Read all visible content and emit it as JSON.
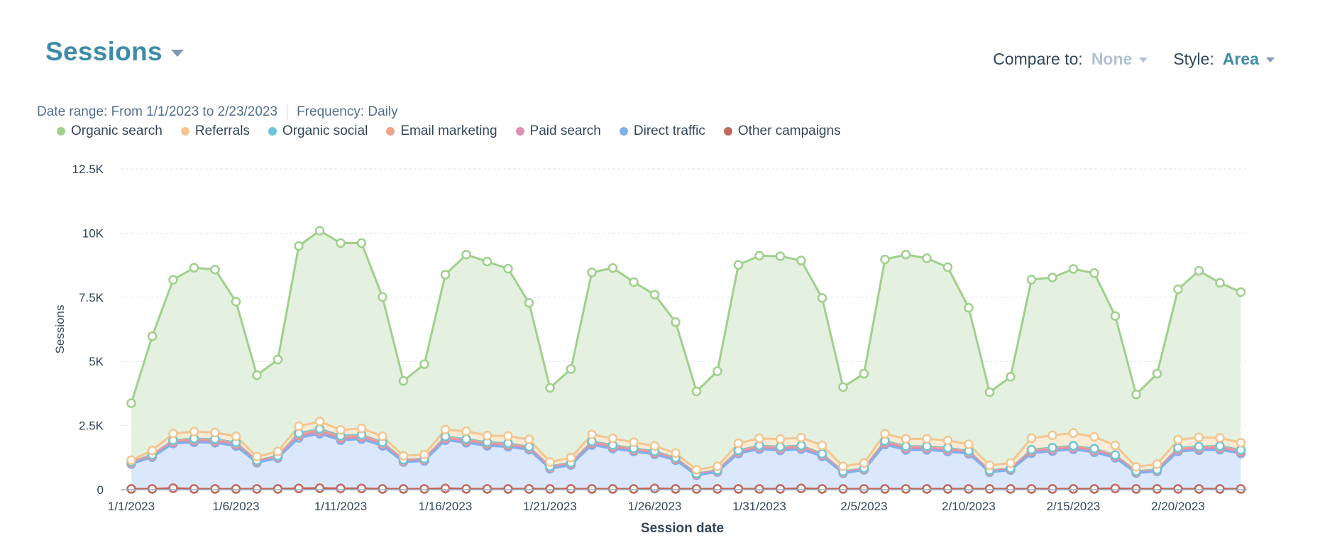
{
  "header": {
    "title": "Sessions"
  },
  "controls": {
    "compare_label": "Compare to:",
    "compare_value": "None",
    "style_label": "Style:",
    "style_value": "Area"
  },
  "meta": {
    "date_range": "Date range: From 1/1/2023 to 2/23/2023",
    "frequency": "Frequency: Daily"
  },
  "chart_data": {
    "type": "area",
    "stacked": true,
    "xlabel": "Session date",
    "ylabel": "Sessions",
    "ylim": [
      0,
      12500
    ],
    "yticks": [
      0,
      2500,
      5000,
      7500,
      10000,
      12500
    ],
    "ytick_labels": [
      "0",
      "2.5K",
      "5K",
      "7.5K",
      "10K",
      "12.5K"
    ],
    "x_tick_labels": [
      "1/1/2023",
      "1/6/2023",
      "1/11/2023",
      "1/16/2023",
      "1/21/2023",
      "1/26/2023",
      "1/31/2023",
      "2/5/2023",
      "2/10/2023",
      "2/15/2023",
      "2/20/2023"
    ],
    "x_tick_every": 5,
    "grid": true,
    "legend_position": "top-left",
    "categories": [
      "1/1/2023",
      "1/2/2023",
      "1/3/2023",
      "1/4/2023",
      "1/5/2023",
      "1/6/2023",
      "1/7/2023",
      "1/8/2023",
      "1/9/2023",
      "1/10/2023",
      "1/11/2023",
      "1/12/2023",
      "1/13/2023",
      "1/14/2023",
      "1/15/2023",
      "1/16/2023",
      "1/17/2023",
      "1/18/2023",
      "1/19/2023",
      "1/20/2023",
      "1/21/2023",
      "1/22/2023",
      "1/23/2023",
      "1/24/2023",
      "1/25/2023",
      "1/26/2023",
      "1/27/2023",
      "1/28/2023",
      "1/29/2023",
      "1/30/2023",
      "1/31/2023",
      "2/1/2023",
      "2/2/2023",
      "2/3/2023",
      "2/4/2023",
      "2/5/2023",
      "2/6/2023",
      "2/7/2023",
      "2/8/2023",
      "2/9/2023",
      "2/10/2023",
      "2/11/2023",
      "2/12/2023",
      "2/13/2023",
      "2/14/2023",
      "2/15/2023",
      "2/16/2023",
      "2/17/2023",
      "2/18/2023",
      "2/19/2023",
      "2/20/2023",
      "2/21/2023",
      "2/22/2023",
      "2/23/2023"
    ],
    "series": [
      {
        "name": "Other campaigns",
        "color": "#c0685a",
        "line": "#c0685a",
        "values": [
          30,
          30,
          60,
          30,
          30,
          30,
          30,
          30,
          50,
          60,
          50,
          50,
          30,
          30,
          30,
          50,
          30,
          30,
          30,
          30,
          30,
          30,
          30,
          30,
          30,
          50,
          30,
          30,
          30,
          30,
          30,
          30,
          50,
          30,
          30,
          30,
          30,
          30,
          30,
          30,
          30,
          30,
          30,
          30,
          30,
          30,
          30,
          50,
          30,
          30,
          30,
          30,
          30,
          30
        ]
      },
      {
        "name": "Direct traffic",
        "color": "#dbe8fb",
        "line": "#7fb0ec",
        "values": [
          970,
          1240,
          1740,
          1820,
          1800,
          1670,
          1020,
          1200,
          1970,
          2120,
          1880,
          1920,
          1680,
          1050,
          1090,
          1880,
          1800,
          1680,
          1640,
          1530,
          790,
          930,
          1710,
          1570,
          1460,
          1330,
          1120,
          530,
          660,
          1380,
          1550,
          1500,
          1530,
          1270,
          610,
          740,
          1730,
          1520,
          1520,
          1460,
          1370,
          650,
          730,
          1390,
          1470,
          1540,
          1430,
          1190,
          620,
          680,
          1460,
          1510,
          1530,
          1380
        ]
      },
      {
        "name": "Paid search",
        "color": "#ead7e6",
        "line": "#dd8fb0",
        "values": [
          40,
          40,
          50,
          60,
          60,
          60,
          40,
          40,
          80,
          80,
          70,
          70,
          60,
          40,
          40,
          60,
          60,
          60,
          60,
          50,
          40,
          40,
          60,
          60,
          50,
          50,
          40,
          30,
          30,
          50,
          60,
          60,
          60,
          40,
          30,
          30,
          60,
          60,
          60,
          60,
          50,
          30,
          30,
          60,
          60,
          60,
          60,
          50,
          30,
          30,
          60,
          60,
          60,
          60
        ]
      },
      {
        "name": "Email marketing",
        "color": "#f2e0da",
        "line": "#f0a487",
        "values": [
          30,
          30,
          50,
          50,
          50,
          50,
          30,
          30,
          60,
          70,
          60,
          60,
          50,
          30,
          30,
          50,
          50,
          50,
          50,
          40,
          30,
          30,
          50,
          50,
          40,
          40,
          30,
          20,
          20,
          40,
          50,
          50,
          50,
          40,
          20,
          20,
          50,
          50,
          50,
          50,
          40,
          20,
          20,
          50,
          50,
          50,
          50,
          40,
          20,
          20,
          50,
          50,
          50,
          50
        ]
      },
      {
        "name": "Organic social",
        "color": "#def0f3",
        "line": "#6bc5d6",
        "values": [
          20,
          20,
          30,
          30,
          30,
          30,
          20,
          20,
          40,
          40,
          40,
          40,
          30,
          20,
          20,
          30,
          30,
          30,
          30,
          20,
          20,
          20,
          30,
          30,
          30,
          30,
          20,
          20,
          20,
          30,
          30,
          30,
          30,
          20,
          20,
          20,
          30,
          30,
          30,
          30,
          20,
          20,
          20,
          30,
          30,
          30,
          30,
          20,
          20,
          20,
          30,
          30,
          30,
          30
        ]
      },
      {
        "name": "Referrals",
        "color": "#f9ebd6",
        "line": "#f3c58f",
        "values": [
          60,
          170,
          260,
          270,
          260,
          240,
          150,
          170,
          270,
          290,
          230,
          250,
          230,
          150,
          160,
          270,
          310,
          260,
          280,
          290,
          170,
          200,
          270,
          260,
          240,
          200,
          190,
          150,
          150,
          280,
          280,
          300,
          310,
          330,
          200,
          200,
          280,
          290,
          290,
          290,
          260,
          200,
          210,
          450,
          480,
          500,
          460,
          380,
          170,
          220,
          320,
          360,
          320,
          280
        ]
      },
      {
        "name": "Organic search",
        "color": "#e4f0e0",
        "line": "#9fd08b",
        "values": [
          2220,
          4450,
          5990,
          6390,
          6350,
          5250,
          3170,
          3580,
          7030,
          7430,
          7280,
          7220,
          5430,
          2920,
          3520,
          6040,
          6880,
          6780,
          6520,
          5320,
          2890,
          3450,
          6320,
          6640,
          6240,
          5900,
          5100,
          3050,
          3710,
          6950,
          7120,
          7130,
          6900,
          5740,
          3090,
          3480,
          6790,
          7180,
          7040,
          6750,
          5320,
          2850,
          3360,
          6180,
          6150,
          6390,
          6380,
          5040,
          2820,
          3520,
          5860,
          6490,
          6040,
          5870
        ]
      }
    ]
  }
}
